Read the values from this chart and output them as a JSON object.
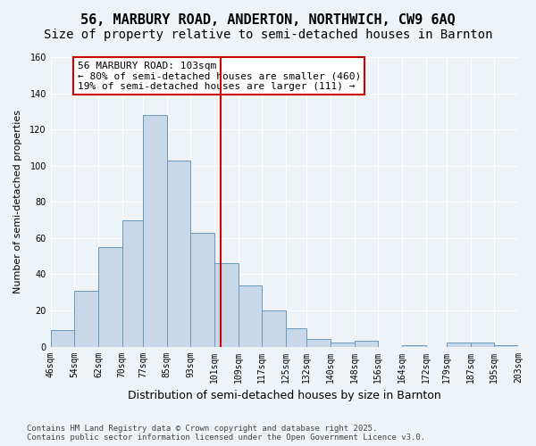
{
  "title": "56, MARBURY ROAD, ANDERTON, NORTHWICH, CW9 6AQ",
  "subtitle": "Size of property relative to semi-detached houses in Barnton",
  "xlabel": "Distribution of semi-detached houses by size in Barnton",
  "ylabel": "Number of semi-detached properties",
  "bins": [
    "46sqm",
    "54sqm",
    "62sqm",
    "70sqm",
    "77sqm",
    "85sqm",
    "93sqm",
    "101sqm",
    "109sqm",
    "117sqm",
    "125sqm",
    "132sqm",
    "140sqm",
    "148sqm",
    "156sqm",
    "164sqm",
    "172sqm",
    "179sqm",
    "187sqm",
    "195sqm",
    "203sqm"
  ],
  "bin_edges": [
    46,
    54,
    62,
    70,
    77,
    85,
    93,
    101,
    109,
    117,
    125,
    132,
    140,
    148,
    156,
    164,
    172,
    179,
    187,
    195,
    203
  ],
  "values": [
    9,
    31,
    55,
    70,
    128,
    103,
    63,
    46,
    34,
    20,
    10,
    4,
    2,
    3,
    0,
    1,
    0,
    2,
    2,
    1
  ],
  "bar_color": "#c8d8e8",
  "bar_edge_color": "#6899bb",
  "property_value": 103,
  "vline_x": 103,
  "vline_color": "#cc0000",
  "annotation_text": "56 MARBURY ROAD: 103sqm\n← 80% of semi-detached houses are smaller (460)\n19% of semi-detached houses are larger (111) →",
  "annotation_box_color": "#ffffff",
  "annotation_box_edge": "#cc0000",
  "ylim": [
    0,
    160
  ],
  "yticks": [
    0,
    20,
    40,
    60,
    80,
    100,
    120,
    140,
    160
  ],
  "bg_color": "#eef3f8",
  "footer": "Contains HM Land Registry data © Crown copyright and database right 2025.\nContains public sector information licensed under the Open Government Licence v3.0.",
  "title_fontsize": 11,
  "subtitle_fontsize": 10,
  "xlabel_fontsize": 9,
  "ylabel_fontsize": 8,
  "tick_fontsize": 7,
  "annotation_fontsize": 8,
  "footer_fontsize": 6.5
}
